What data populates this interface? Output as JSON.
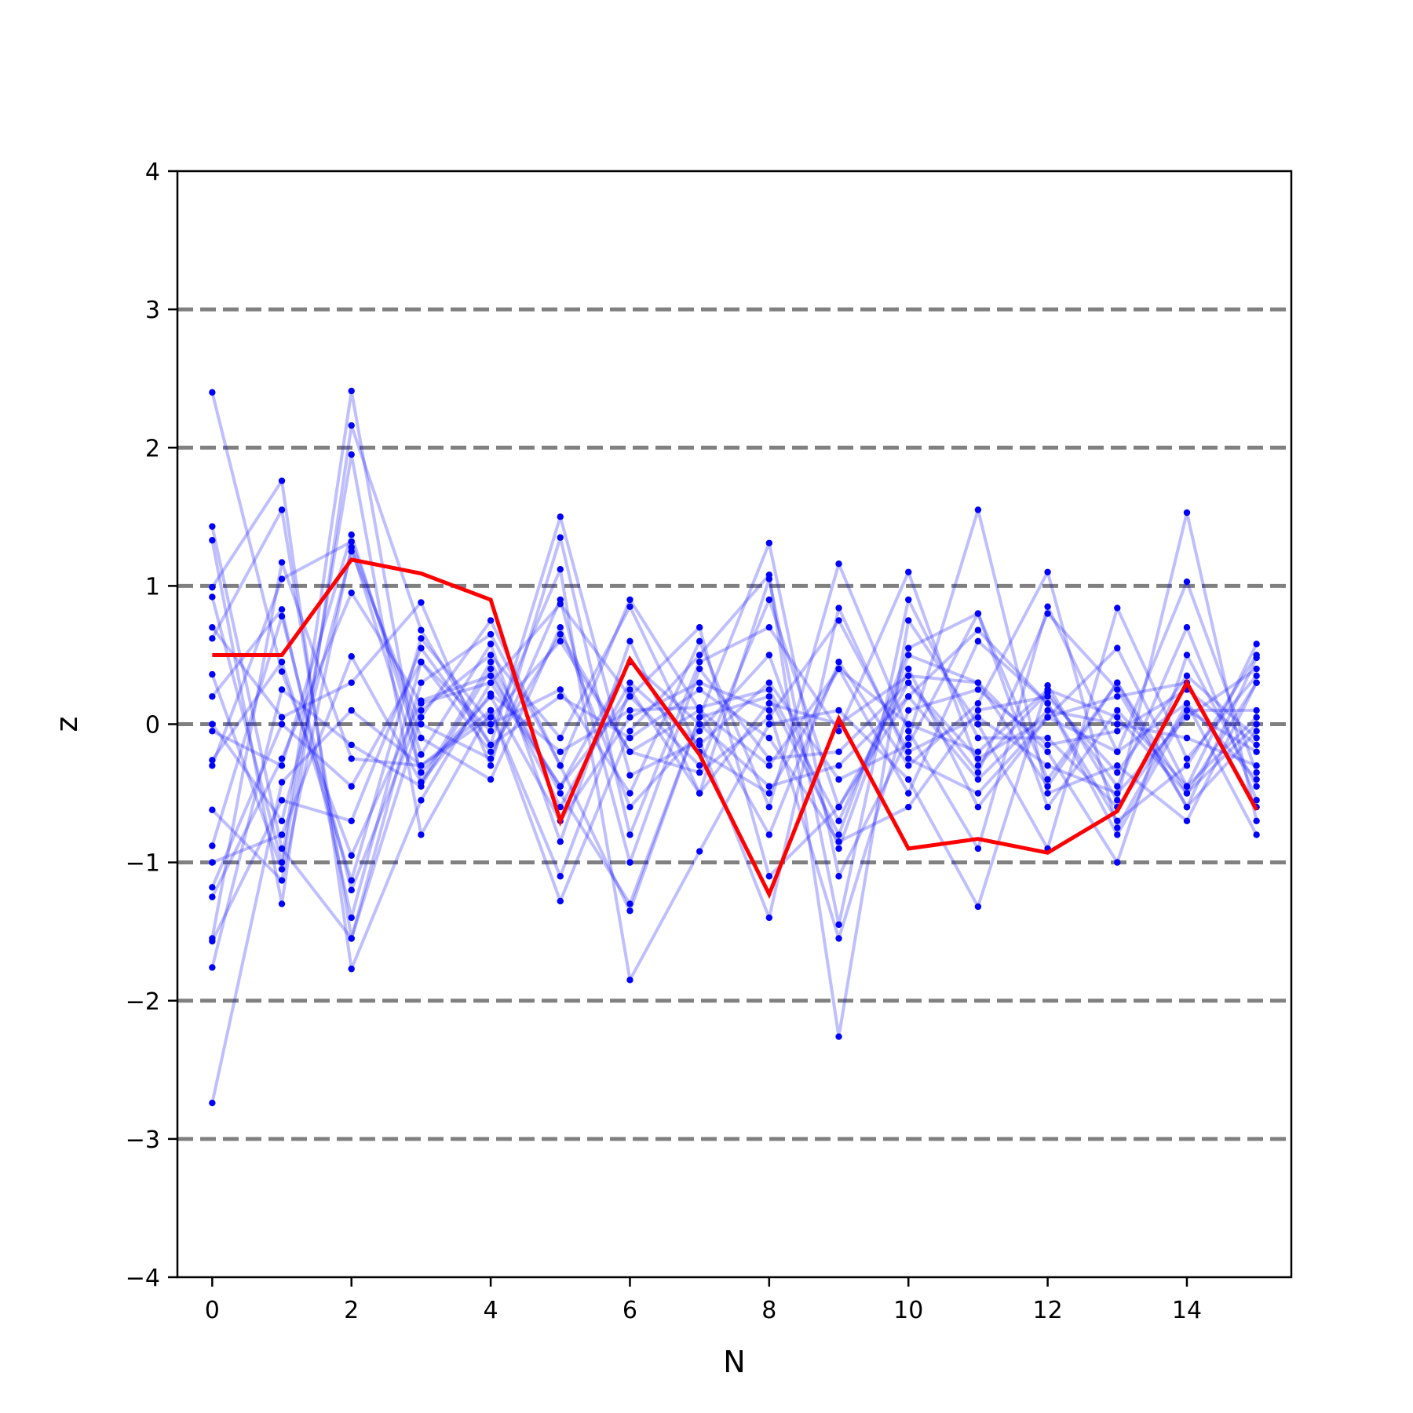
{
  "chart_data": {
    "type": "line",
    "title": "",
    "xlabel": "N",
    "ylabel": "z",
    "xlim": [
      -0.5,
      15.5
    ],
    "ylim": [
      -4,
      4
    ],
    "xticks": [
      0,
      2,
      4,
      6,
      8,
      10,
      12,
      14
    ],
    "xtick_labels": [
      "0",
      "2",
      "4",
      "6",
      "8",
      "10",
      "12",
      "14"
    ],
    "yticks": [
      -4,
      -3,
      -2,
      -1,
      0,
      1,
      2,
      3,
      4
    ],
    "ytick_labels": [
      "−4",
      "−3",
      "−2",
      "−1",
      "0",
      "1",
      "2",
      "3",
      "4"
    ],
    "reference_lines": [
      -3,
      -2,
      -1,
      0,
      1,
      2,
      3
    ],
    "reference_line_color": "#808080",
    "x": [
      0,
      1,
      2,
      3,
      4,
      5,
      6,
      7,
      8,
      9,
      10,
      11,
      12,
      13,
      14,
      15
    ],
    "highlight_series": {
      "color": "#ff0000",
      "values": [
        0.5,
        0.5,
        1.19,
        1.09,
        0.9,
        -0.7,
        0.47,
        -0.22,
        -1.23,
        0.04,
        -0.9,
        -0.83,
        -0.93,
        -0.63,
        0.3,
        -0.62
      ]
    },
    "background_series_color": "#0000ff",
    "background_series": [
      {
        "values": [
          2.4,
          0.38,
          -0.95,
          0.17,
          0.35,
          -0.45,
          0.2,
          -0.3,
          0.9,
          -0.6,
          0.2,
          0.68,
          0.15,
          -0.8,
          0.1,
          -0.2
        ]
      },
      {
        "values": [
          -2.74,
          -0.42,
          0.1,
          -0.3,
          0.05,
          0.6,
          -0.2,
          0.1,
          -0.3,
          0.4,
          0.0,
          -0.2,
          0.25,
          0.05,
          -0.5,
          0.3
        ]
      },
      {
        "values": [
          1.43,
          -0.9,
          -1.55,
          0.05,
          0.75,
          -0.3,
          -1.35,
          0.05,
          0.2,
          -0.8,
          0.55,
          0.8,
          -0.4,
          0.3,
          -0.6,
          0.48
        ]
      },
      {
        "values": [
          1.33,
          -1.3,
          2.16,
          0.68,
          -0.15,
          1.5,
          -0.37,
          -0.12,
          -1.4,
          0.84,
          -0.25,
          -0.5,
          0.05,
          0.55,
          -0.45,
          0.58
        ]
      },
      {
        "values": [
          0.99,
          1.76,
          -1.77,
          -0.55,
          0.3,
          0.87,
          0.2,
          0.7,
          -1.1,
          -0.6,
          0.3,
          -0.35,
          0.8,
          0.25,
          -0.6,
          -0.05
        ]
      },
      {
        "values": [
          0.92,
          -1.0,
          2.41,
          -0.42,
          0.45,
          -0.5,
          -1.3,
          0.05,
          1.31,
          -1.1,
          -0.1,
          1.55,
          -0.5,
          -0.3,
          -0.7,
          0.3
        ]
      },
      {
        "values": [
          0.7,
          0.05,
          0.3,
          0.88,
          -0.3,
          1.35,
          -0.8,
          0.45,
          0.7,
          -0.05,
          1.1,
          -0.3,
          0.23,
          -0.45,
          0.7,
          -0.55
        ]
      },
      {
        "values": [
          0.62,
          1.55,
          -1.55,
          0.3,
          0.65,
          -0.3,
          0.9,
          0.1,
          -0.8,
          0.45,
          -0.3,
          0.15,
          1.1,
          -0.75,
          0.15,
          -0.8
        ]
      },
      {
        "values": [
          0.36,
          -1.05,
          1.95,
          -0.8,
          0.1,
          -1.28,
          -0.05,
          0.5,
          1.08,
          -2.26,
          0.75,
          0.0,
          -0.9,
          0.84,
          -0.25,
          0.35
        ]
      },
      {
        "values": [
          0.2,
          0.83,
          -1.4,
          0.45,
          -0.05,
          1.12,
          -1.85,
          -0.92,
          0.0,
          0.1,
          -0.4,
          -1.32,
          0.28,
          -0.55,
          1.53,
          -0.7
        ]
      },
      {
        "values": [
          -0.05,
          -0.3,
          1.37,
          -0.22,
          0.58,
          -0.85,
          0.6,
          -0.5,
          1.05,
          -1.45,
          0.9,
          -0.1,
          -0.1,
          -0.6,
          0.1,
          0.1
        ]
      },
      {
        "values": [
          -0.26,
          0.45,
          -1.13,
          0.62,
          0.0,
          0.25,
          -0.5,
          0.6,
          -0.6,
          1.16,
          -0.05,
          -0.9,
          0.85,
          -0.2,
          1.03,
          -0.35
        ]
      },
      {
        "values": [
          -0.3,
          1.05,
          1.32,
          -0.1,
          -0.4,
          0.7,
          -0.6,
          -0.05,
          0.5,
          -0.9,
          0.5,
          0.3,
          -0.2,
          -1.0,
          0.5,
          -0.45
        ]
      },
      {
        "values": [
          -0.62,
          -1.13,
          1.28,
          -0.35,
          0.2,
          -0.7,
          0.05,
          0.3,
          0.1,
          -1.55,
          0.1,
          0.25,
          -0.15,
          -0.05,
          0.25,
          -0.15
        ]
      },
      {
        "values": [
          -0.88,
          0.78,
          -1.2,
          0.1,
          0.5,
          -0.1,
          0.85,
          -0.2,
          -0.5,
          0.4,
          -0.5,
          0.6,
          0.15,
          -0.7,
          -0.3,
          0.5
        ]
      },
      {
        "values": [
          -1.0,
          -0.8,
          0.49,
          -0.42,
          0.22,
          -0.2,
          0.1,
          0.12,
          0.25,
          -0.7,
          0.4,
          -0.6,
          0.05,
          0.2,
          0.3,
          -0.6
        ]
      },
      {
        "values": [
          -1.18,
          0.0,
          -0.45,
          0.45,
          -0.2,
          0.65,
          -0.2,
          -0.35,
          0.05,
          0.75,
          -0.2,
          0.05,
          -0.3,
          -0.5,
          0.05,
          0.4
        ]
      },
      {
        "values": [
          -1.25,
          -0.25,
          0.95,
          0.15,
          0.3,
          -0.45,
          0.45,
          0.0,
          -0.45,
          -0.3,
          0.2,
          -0.4,
          0.1,
          0.0,
          -0.1,
          -0.3
        ]
      },
      {
        "values": [
          -1.55,
          1.17,
          -0.25,
          -0.3,
          0.1,
          -1.1,
          0.25,
          -0.5,
          0.15,
          0.0,
          0.35,
          0.3,
          -0.45,
          0.3,
          -0.5,
          0.0
        ]
      },
      {
        "values": [
          -1.57,
          -0.55,
          -0.7,
          0.55,
          -0.15,
          0.2,
          -0.1,
          0.25,
          -0.1,
          -0.85,
          -0.6,
          0.1,
          0.2,
          -0.35,
          0.35,
          -0.1
        ]
      },
      {
        "values": [
          -1.76,
          0.25,
          -0.15,
          -0.45,
          0.4,
          -0.6,
          0.3,
          -0.15,
          0.3,
          -0.4,
          -0.15,
          0.8,
          -0.6,
          0.1,
          -0.45,
          0.05
        ]
      },
      {
        "values": [
          0.0,
          -0.7,
          1.25,
          0.0,
          -0.25,
          0.9,
          -1.0,
          0.4,
          -0.25,
          -0.2,
          0.3,
          -0.25,
          0.05,
          -0.2,
          0.15,
          -0.4
        ]
      }
    ]
  }
}
